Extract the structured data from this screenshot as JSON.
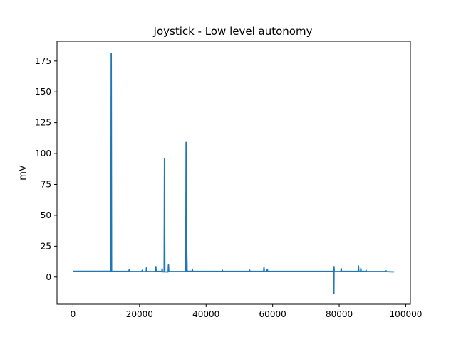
{
  "chart_data": {
    "type": "line",
    "title": "Joystick - Low level autonomy",
    "xlabel": "",
    "ylabel": "mV",
    "xlim": [
      -4800,
      101400
    ],
    "ylim": [
      -22,
      191
    ],
    "xticks": [
      0,
      20000,
      40000,
      60000,
      80000,
      100000
    ],
    "xtick_labels": [
      "0",
      "20000",
      "40000",
      "60000",
      "80000",
      "100000"
    ],
    "yticks": [
      0,
      25,
      50,
      75,
      100,
      125,
      150,
      175
    ],
    "ytick_labels": [
      "0",
      "25",
      "50",
      "75",
      "100",
      "125",
      "150",
      "175"
    ],
    "grid": false,
    "legend": "none",
    "series": [
      {
        "color": "#1f77b4",
        "points": [
          [
            0,
            4.7
          ],
          [
            11400,
            4.7
          ],
          [
            11500,
            181
          ],
          [
            11600,
            4.6
          ],
          [
            16800,
            4.6
          ],
          [
            16900,
            6.0
          ],
          [
            17000,
            4.5
          ],
          [
            20700,
            4.5
          ],
          [
            20800,
            5.4
          ],
          [
            20900,
            4.4
          ],
          [
            22000,
            4.4
          ],
          [
            22100,
            7.6
          ],
          [
            22200,
            4.5
          ],
          [
            24800,
            4.5
          ],
          [
            24900,
            8.5
          ],
          [
            25000,
            4.6
          ],
          [
            26700,
            4.6
          ],
          [
            26800,
            6.8
          ],
          [
            26900,
            4.3
          ],
          [
            27400,
            4.3
          ],
          [
            27500,
            96
          ],
          [
            27600,
            4.2
          ],
          [
            28600,
            4.2
          ],
          [
            28700,
            10
          ],
          [
            28800,
            4.5
          ],
          [
            33900,
            4.5
          ],
          [
            34000,
            109
          ],
          [
            34100,
            5
          ],
          [
            34200,
            20
          ],
          [
            34300,
            4.7
          ],
          [
            35800,
            4.7
          ],
          [
            35900,
            6.0
          ],
          [
            36000,
            4.6
          ],
          [
            44800,
            4.6
          ],
          [
            44900,
            5.5
          ],
          [
            45000,
            4.6
          ],
          [
            53000,
            4.6
          ],
          [
            53100,
            5.6
          ],
          [
            53200,
            4.6
          ],
          [
            57300,
            4.6
          ],
          [
            57400,
            8.2
          ],
          [
            57500,
            4.5
          ],
          [
            58300,
            4.5
          ],
          [
            58400,
            6.4
          ],
          [
            58500,
            4.6
          ],
          [
            78300,
            4.6
          ],
          [
            78400,
            -13.5
          ],
          [
            78450,
            8.5
          ],
          [
            78500,
            4.5
          ],
          [
            80500,
            4.5
          ],
          [
            80600,
            7.0
          ],
          [
            80700,
            4.6
          ],
          [
            85700,
            4.6
          ],
          [
            85800,
            9.0
          ],
          [
            85900,
            4.5
          ],
          [
            86400,
            4.5
          ],
          [
            86500,
            7.0
          ],
          [
            86600,
            4.6
          ],
          [
            88000,
            4.6
          ],
          [
            88100,
            5.4
          ],
          [
            88200,
            4.5
          ],
          [
            94000,
            4.5
          ],
          [
            94100,
            5.0
          ],
          [
            94200,
            4.4
          ],
          [
            96500,
            4.2
          ]
        ]
      }
    ]
  }
}
